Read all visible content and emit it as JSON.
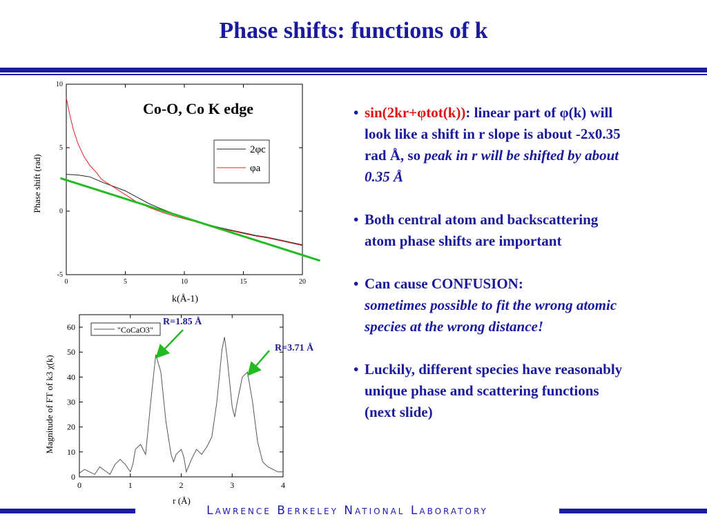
{
  "slide": {
    "title": "Phase shifts: functions of k",
    "footer": "Lawrence Berkeley National Laboratory"
  },
  "colors": {
    "title": "#1a1a9c",
    "rule": "#1c1ca8",
    "highlight_red": "#e01010",
    "fit_line": "#22bb22"
  },
  "bullets": [
    {
      "lead_red": "sin(2kr+φtot(k))",
      "lead_rest": ": linear part of φ(k) will look like a shift in r slope is about -2x0.35 rad Å, so ",
      "italic": "peak in r will be shifted by about 0.35 Å"
    },
    {
      "text": "Both central atom and backscattering atom phase shifts are important"
    },
    {
      "text": "Can cause CONFUSION:",
      "italic": "sometimes possible to fit the wrong atomic species at the wrong distance!"
    },
    {
      "text": "Luckily, different species have reasonably unique phase and scattering functions (next slide)"
    }
  ],
  "chart_data": [
    {
      "type": "line",
      "title": "Co-O, Co K edge",
      "xlabel": "k(Å-1)",
      "ylabel": "Phase shift (rad)",
      "xlim": [
        0,
        20
      ],
      "ylim": [
        -5,
        10
      ],
      "xticks": [
        "0",
        "5",
        "10",
        "15",
        "20"
      ],
      "yticks": [
        "10",
        "5",
        "0",
        "-5"
      ],
      "legend_position": "top-right",
      "series": [
        {
          "name": "2φc",
          "color": "#222222",
          "x": [
            0,
            1,
            2,
            3,
            4,
            5,
            6,
            7,
            8,
            9,
            10,
            11,
            12,
            13,
            14,
            15,
            16,
            17,
            18,
            19,
            20
          ],
          "y": [
            2.9,
            2.85,
            2.7,
            2.3,
            1.95,
            1.6,
            1.1,
            0.6,
            0.2,
            -0.15,
            -0.45,
            -0.75,
            -1.05,
            -1.3,
            -1.5,
            -1.7,
            -1.9,
            -2.05,
            -2.25,
            -2.45,
            -2.65
          ]
        },
        {
          "name": "φa",
          "color": "#e02020",
          "x": [
            0,
            0.3,
            0.6,
            1,
            1.5,
            2,
            2.5,
            3,
            3.5,
            4,
            5,
            6,
            7,
            8,
            9,
            10,
            11,
            12,
            13,
            14,
            15,
            16,
            17,
            18,
            19,
            20
          ],
          "y": [
            8.9,
            7.6,
            6.4,
            5.3,
            4.3,
            3.6,
            3.1,
            2.5,
            2.2,
            1.9,
            1.3,
            0.7,
            0.3,
            -0.05,
            -0.35,
            -0.6,
            -0.85,
            -1.1,
            -1.35,
            -1.55,
            -1.75,
            -1.95,
            -2.1,
            -2.3,
            -2.5,
            -2.7
          ]
        }
      ],
      "overlay_line": {
        "color": "#22bb22",
        "x": [
          -0.5,
          21.5
        ],
        "y": [
          2.6,
          -3.9
        ]
      }
    },
    {
      "type": "line",
      "xlabel": "r (Å)",
      "ylabel": "Magnitude of FT of k3 χ(k)",
      "xlim": [
        0,
        4
      ],
      "ylim": [
        0,
        65
      ],
      "xticks": [
        "0",
        "1",
        "2",
        "3",
        "4"
      ],
      "yticks": [
        "0",
        "10",
        "20",
        "30",
        "40",
        "50",
        "60"
      ],
      "legend_position": "top-left",
      "series": [
        {
          "name": "\"CoCaO3\"",
          "color": "#555555",
          "x": [
            0,
            0.1,
            0.2,
            0.3,
            0.4,
            0.5,
            0.6,
            0.7,
            0.8,
            0.9,
            1.0,
            1.05,
            1.1,
            1.2,
            1.3,
            1.4,
            1.5,
            1.6,
            1.7,
            1.8,
            1.85,
            1.9,
            2.0,
            2.05,
            2.1,
            2.2,
            2.3,
            2.4,
            2.5,
            2.6,
            2.7,
            2.8,
            2.85,
            2.9,
            3.0,
            3.05,
            3.1,
            3.2,
            3.3,
            3.4,
            3.5,
            3.6,
            3.7,
            3.8,
            3.9,
            4.0
          ],
          "y": [
            1.5,
            3,
            2,
            1,
            4,
            2.5,
            1,
            5,
            7,
            5,
            2,
            5,
            11,
            13,
            9,
            30,
            49,
            42,
            22,
            9,
            6,
            9,
            11,
            8,
            2,
            7,
            11,
            9,
            12,
            16,
            30,
            51,
            56,
            48,
            28,
            24,
            30,
            40,
            42,
            30,
            14,
            6,
            4,
            3,
            2,
            2
          ]
        }
      ],
      "annotations": [
        {
          "text": "R=1.85 Å",
          "x": 1.5,
          "y": 49
        },
        {
          "text": "R=3.71 Å",
          "x": 3.3,
          "y": 42
        }
      ]
    }
  ]
}
